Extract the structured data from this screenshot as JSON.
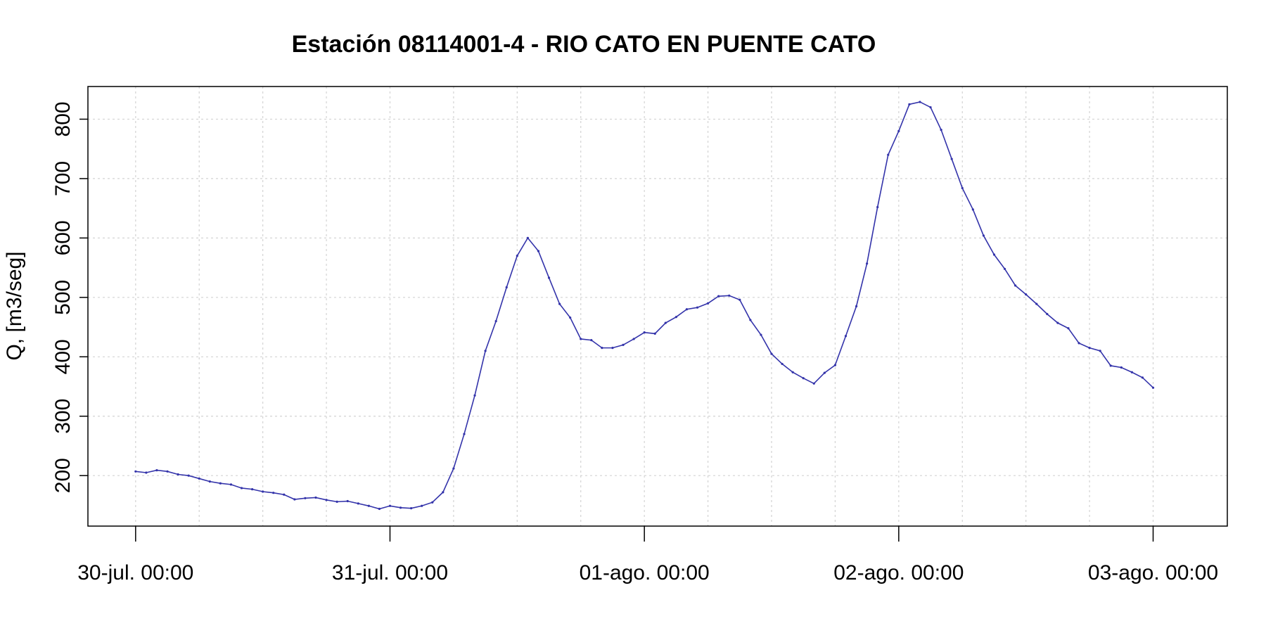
{
  "chart_data": {
    "type": "line",
    "title": "Estación 08114001-4 - RIO CATO EN PUENTE CATO",
    "xlabel": "",
    "ylabel": "Q, [m3/seg]",
    "x_tick_labels": [
      "30-jul. 00:00",
      "31-jul. 00:00",
      "01-ago. 00:00",
      "02-ago. 00:00",
      "03-ago. 00:00"
    ],
    "y_ticks": [
      200,
      300,
      400,
      500,
      600,
      700,
      800
    ],
    "xlim_hours": [
      -4.5,
      103
    ],
    "ylim": [
      115,
      855
    ],
    "grid": true,
    "line_color": "#3333aa",
    "series": [
      {
        "x_hours": [
          0,
          1,
          2,
          3,
          4,
          5,
          6,
          7,
          8,
          9,
          10,
          11,
          12,
          13,
          14,
          15,
          16,
          17,
          18,
          19,
          20,
          21,
          22,
          23,
          24,
          25,
          26,
          27,
          28,
          29,
          30,
          31,
          32,
          33,
          34,
          35,
          36,
          37,
          38,
          39,
          40,
          41,
          42,
          43,
          44,
          45,
          46,
          47,
          48,
          49,
          50,
          51,
          52,
          53,
          54,
          55,
          56,
          57,
          58,
          59,
          60,
          61,
          62,
          63,
          64,
          65,
          66,
          67,
          68,
          69,
          70,
          71,
          72,
          73,
          74,
          75,
          76,
          77,
          78,
          79,
          80,
          81,
          82,
          83,
          84,
          85,
          86,
          87,
          88,
          89,
          90,
          91,
          92,
          93,
          94,
          95,
          96
        ],
        "values": [
          207,
          205,
          209,
          207,
          202,
          200,
          195,
          190,
          187,
          185,
          179,
          177,
          173,
          171,
          168,
          160,
          162,
          163,
          159,
          156,
          157,
          153,
          149,
          144,
          149,
          146,
          145,
          149,
          155,
          172,
          212,
          270,
          335,
          410,
          460,
          517,
          570,
          600,
          578,
          533,
          489,
          466,
          430,
          428,
          415,
          415,
          420,
          430,
          441,
          439,
          457,
          467,
          480,
          483,
          490,
          502,
          503,
          496,
          462,
          437,
          405,
          388,
          374,
          364,
          355,
          373,
          386,
          435,
          485,
          557,
          652,
          740,
          780,
          825,
          829,
          820,
          782,
          733,
          684,
          648,
          604,
          572,
          548,
          520,
          505,
          489,
          472,
          457,
          448,
          423,
          415,
          410,
          385,
          382,
          374,
          365,
          348
        ]
      }
    ]
  }
}
